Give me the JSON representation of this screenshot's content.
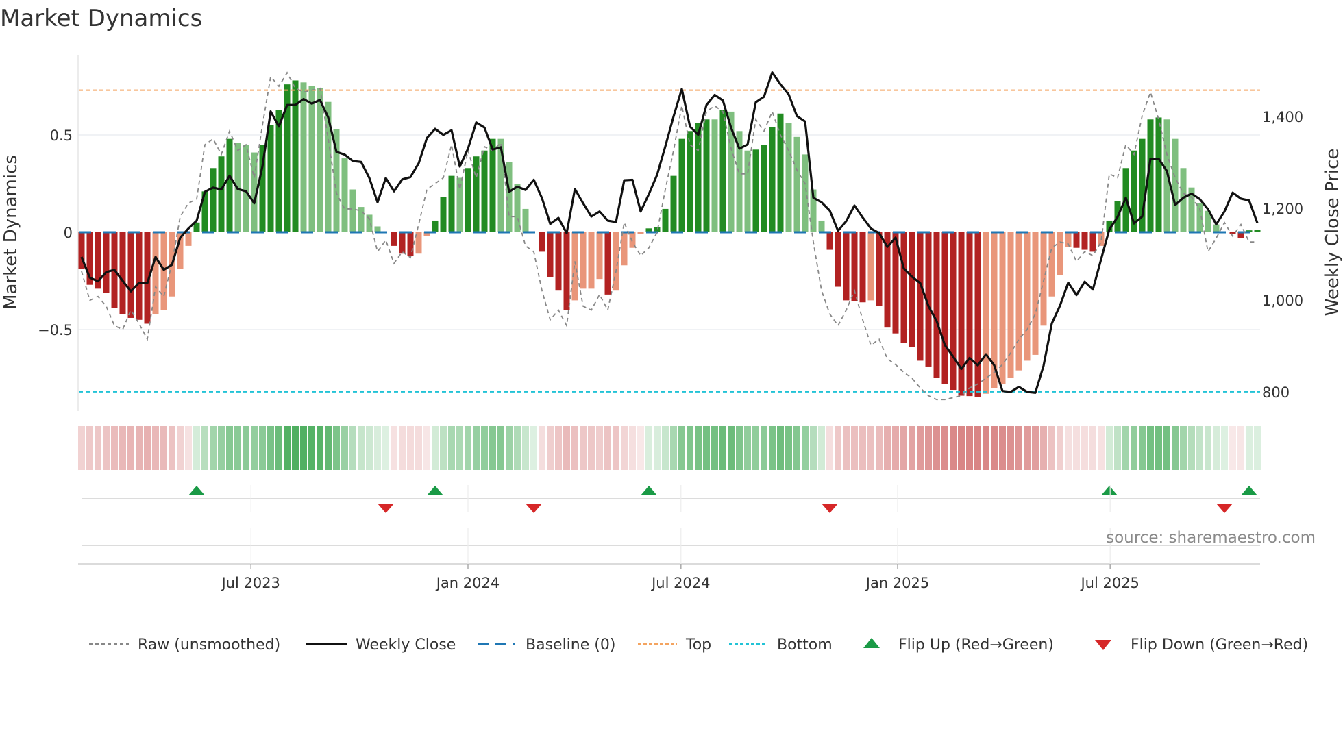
{
  "chart_data": {
    "type": "bar",
    "title": "Market Dynamics",
    "ylabel": "Market Dynamics",
    "y2label": "Weekly Close Price",
    "ylim": [
      -0.95,
      0.95
    ],
    "y2lim": [
      800,
      1500
    ],
    "yticks": [
      {
        "value": 0.5,
        "label": "0.5"
      },
      {
        "value": 0,
        "label": "0"
      },
      {
        "value": -0.5,
        "label": "−0.5"
      }
    ],
    "y2ticks": [
      {
        "value": 1400,
        "label": "1,400"
      },
      {
        "value": 1200,
        "label": "1,200"
      },
      {
        "value": 1000,
        "label": "1,000"
      },
      {
        "value": 800,
        "label": "800"
      }
    ],
    "xticks": [
      {
        "week": 20.6,
        "label": "Jul 2023"
      },
      {
        "week": 47.0,
        "label": "Jan 2024"
      },
      {
        "week": 72.9,
        "label": "Jul 2024"
      },
      {
        "week": 99.25,
        "label": "Jan 2025"
      },
      {
        "week": 125.1,
        "label": "Jul 2025"
      }
    ],
    "top_level": 0.73,
    "bottom_level": -0.82,
    "baseline": 0,
    "smoothed": [
      -0.19,
      -0.27,
      -0.29,
      -0.31,
      -0.39,
      -0.42,
      -0.44,
      -0.45,
      -0.47,
      -0.42,
      -0.4,
      -0.33,
      -0.19,
      -0.07,
      0.05,
      0.21,
      0.33,
      0.39,
      0.48,
      0.46,
      0.45,
      0.41,
      0.45,
      0.55,
      0.63,
      0.76,
      0.78,
      0.77,
      0.75,
      0.74,
      0.67,
      0.53,
      0.38,
      0.22,
      0.13,
      0.09,
      0.03,
      0.0,
      -0.07,
      -0.11,
      -0.12,
      -0.11,
      -0.02,
      0.06,
      0.18,
      0.29,
      0.28,
      0.33,
      0.39,
      0.42,
      0.48,
      0.48,
      0.36,
      0.25,
      0.12,
      0.0,
      -0.1,
      -0.23,
      -0.3,
      -0.4,
      -0.35,
      -0.29,
      -0.29,
      -0.24,
      -0.32,
      -0.3,
      -0.17,
      -0.08,
      -0.01,
      0.02,
      0.025,
      0.12,
      0.29,
      0.48,
      0.52,
      0.56,
      0.58,
      0.58,
      0.63,
      0.62,
      0.52,
      0.42,
      0.425,
      0.45,
      0.54,
      0.61,
      0.56,
      0.49,
      0.4,
      0.22,
      0.06,
      -0.09,
      -0.28,
      -0.35,
      -0.355,
      -0.36,
      -0.35,
      -0.38,
      -0.49,
      -0.52,
      -0.57,
      -0.59,
      -0.66,
      -0.69,
      -0.75,
      -0.78,
      -0.81,
      -0.84,
      -0.842,
      -0.845,
      -0.83,
      -0.8,
      -0.78,
      -0.75,
      -0.71,
      -0.66,
      -0.63,
      -0.48,
      -0.33,
      -0.22,
      -0.075,
      -0.08,
      -0.09,
      -0.1,
      -0.07,
      0.06,
      0.16,
      0.33,
      0.42,
      0.48,
      0.58,
      0.59,
      0.58,
      0.48,
      0.33,
      0.23,
      0.15,
      0.11,
      0.04,
      0.0,
      -0.01,
      -0.03,
      0.01,
      0.012
    ],
    "raw": [
      -0.2,
      -0.35,
      -0.33,
      -0.38,
      -0.48,
      -0.5,
      -0.4,
      -0.47,
      -0.55,
      -0.28,
      -0.33,
      -0.16,
      0.08,
      0.15,
      0.17,
      0.45,
      0.48,
      0.4,
      0.52,
      0.42,
      0.45,
      0.28,
      0.55,
      0.8,
      0.75,
      0.82,
      0.74,
      0.72,
      0.73,
      0.74,
      0.48,
      0.2,
      0.12,
      0.12,
      0.11,
      0.07,
      -0.1,
      -0.04,
      -0.16,
      -0.1,
      -0.13,
      0.04,
      0.22,
      0.25,
      0.28,
      0.45,
      0.22,
      0.42,
      0.28,
      0.44,
      0.42,
      0.46,
      0.08,
      0.08,
      -0.07,
      -0.1,
      -0.3,
      -0.45,
      -0.4,
      -0.48,
      -0.15,
      -0.38,
      -0.4,
      -0.32,
      -0.4,
      -0.2,
      0.05,
      -0.05,
      -0.12,
      -0.08,
      0.0,
      0.22,
      0.42,
      0.65,
      0.45,
      0.42,
      0.62,
      0.65,
      0.62,
      0.43,
      0.3,
      0.3,
      0.58,
      0.52,
      0.62,
      0.5,
      0.42,
      0.32,
      0.25,
      -0.05,
      -0.3,
      -0.42,
      -0.48,
      -0.4,
      -0.3,
      -0.45,
      -0.58,
      -0.55,
      -0.65,
      -0.68,
      -0.72,
      -0.75,
      -0.8,
      -0.84,
      -0.86,
      -0.86,
      -0.85,
      -0.84,
      -0.8,
      -0.78,
      -0.75,
      -0.72,
      -0.68,
      -0.62,
      -0.55,
      -0.5,
      -0.42,
      -0.25,
      -0.08,
      -0.05,
      -0.06,
      -0.15,
      -0.1,
      -0.12,
      -0.05,
      0.3,
      0.28,
      0.45,
      0.4,
      0.6,
      0.72,
      0.58,
      0.4,
      0.28,
      0.2,
      0.18,
      0.12,
      -0.1,
      -0.03,
      0.05,
      -0.02,
      0.04,
      -0.05,
      -0.05
    ],
    "weekly_close": [
      1094,
      1049,
      1041,
      1061,
      1066,
      1042,
      1019,
      1038,
      1037,
      1094,
      1066,
      1077,
      1136,
      1156,
      1173,
      1236,
      1245,
      1241,
      1271,
      1242,
      1237,
      1211,
      1291,
      1411,
      1378,
      1425,
      1425,
      1438,
      1428,
      1436,
      1398,
      1323,
      1317,
      1303,
      1301,
      1266,
      1213,
      1266,
      1237,
      1263,
      1268,
      1298,
      1353,
      1373,
      1360,
      1370,
      1291,
      1330,
      1387,
      1376,
      1328,
      1333,
      1236,
      1247,
      1240,
      1262,
      1222,
      1166,
      1179,
      1146,
      1242,
      1211,
      1182,
      1193,
      1173,
      1170,
      1261,
      1262,
      1193,
      1231,
      1273,
      1335,
      1400,
      1460,
      1378,
      1360,
      1425,
      1447,
      1435,
      1375,
      1330,
      1339,
      1431,
      1443,
      1496,
      1470,
      1448,
      1401,
      1389,
      1223,
      1213,
      1195,
      1151,
      1172,
      1206,
      1180,
      1156,
      1146,
      1116,
      1136,
      1069,
      1051,
      1037,
      987,
      954,
      902,
      877,
      850,
      874,
      858,
      882,
      858,
      802,
      800,
      811,
      800,
      798,
      857,
      949,
      988,
      1038,
      1011,
      1040,
      1023,
      1089,
      1154,
      1181,
      1223,
      1167,
      1182,
      1308,
      1308,
      1281,
      1207,
      1223,
      1232,
      1220,
      1198,
      1165,
      1193,
      1234,
      1221,
      1217,
      1168
    ],
    "flip_up_weeks": [
      14,
      43,
      69,
      125,
      142
    ],
    "flip_down_weeks": [
      37,
      55,
      91,
      139
    ],
    "legend": {
      "placement": "bottom",
      "items": [
        {
          "label": "Raw (unsmoothed)"
        },
        {
          "label": "Weekly Close"
        },
        {
          "label": "Baseline (0)"
        },
        {
          "label": "Top"
        },
        {
          "label": "Bottom"
        },
        {
          "label": "Flip Up (Red→Green)"
        },
        {
          "label": "Flip Down (Green→Red)"
        }
      ]
    },
    "annotation": "source: sharemaestro.com",
    "colors": {
      "rising_green": "#228b22",
      "falling_green": "#7fbf7f",
      "falling_red": "#b22222",
      "recovering_red": "#e9967a",
      "raw": "#888888",
      "close": "#111111",
      "baseline": "#1f77b4",
      "top": "#f4a460",
      "bottom": "#22c3d6",
      "flip_up": "#1a9a46",
      "flip_down": "#d62728"
    }
  }
}
